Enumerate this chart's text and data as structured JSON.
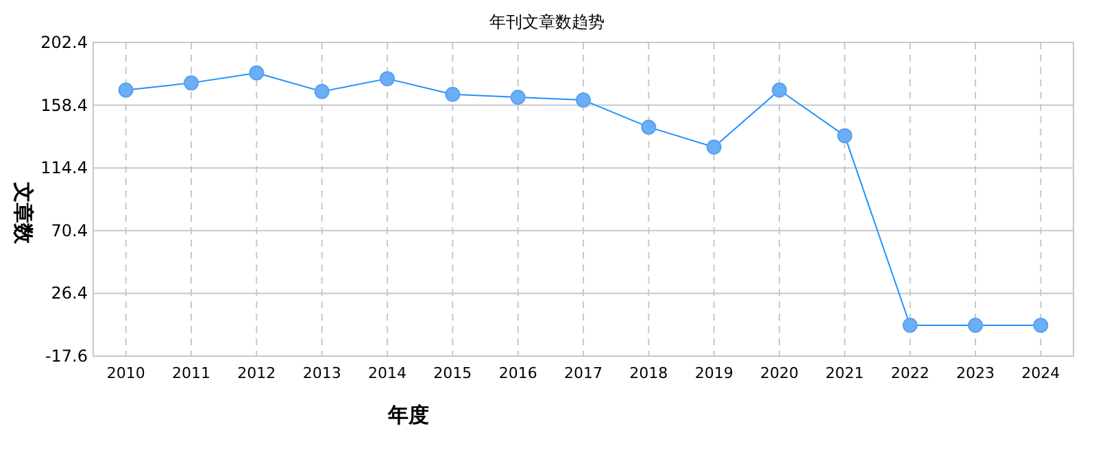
{
  "chart_data": {
    "type": "line",
    "title": "年刊文章数趋势",
    "xlabel": "年度",
    "ylabel": "文章数",
    "categories": [
      "2010",
      "2011",
      "2012",
      "2013",
      "2014",
      "2015",
      "2016",
      "2017",
      "2018",
      "2019",
      "2020",
      "2021",
      "2022",
      "2023",
      "2024"
    ],
    "series": [
      {
        "color": "#1e90ff",
        "values": [
          169,
          174,
          181,
          168,
          177,
          166,
          164,
          162,
          143,
          129,
          169,
          137,
          4,
          4,
          4
        ]
      }
    ],
    "ylim": [
      -17.6,
      202.4
    ],
    "yticks": [
      -17.6,
      26.4,
      70.4,
      114.4,
      158.4,
      202.4
    ],
    "grid": true,
    "marker": "circle",
    "line_style": "solid"
  }
}
